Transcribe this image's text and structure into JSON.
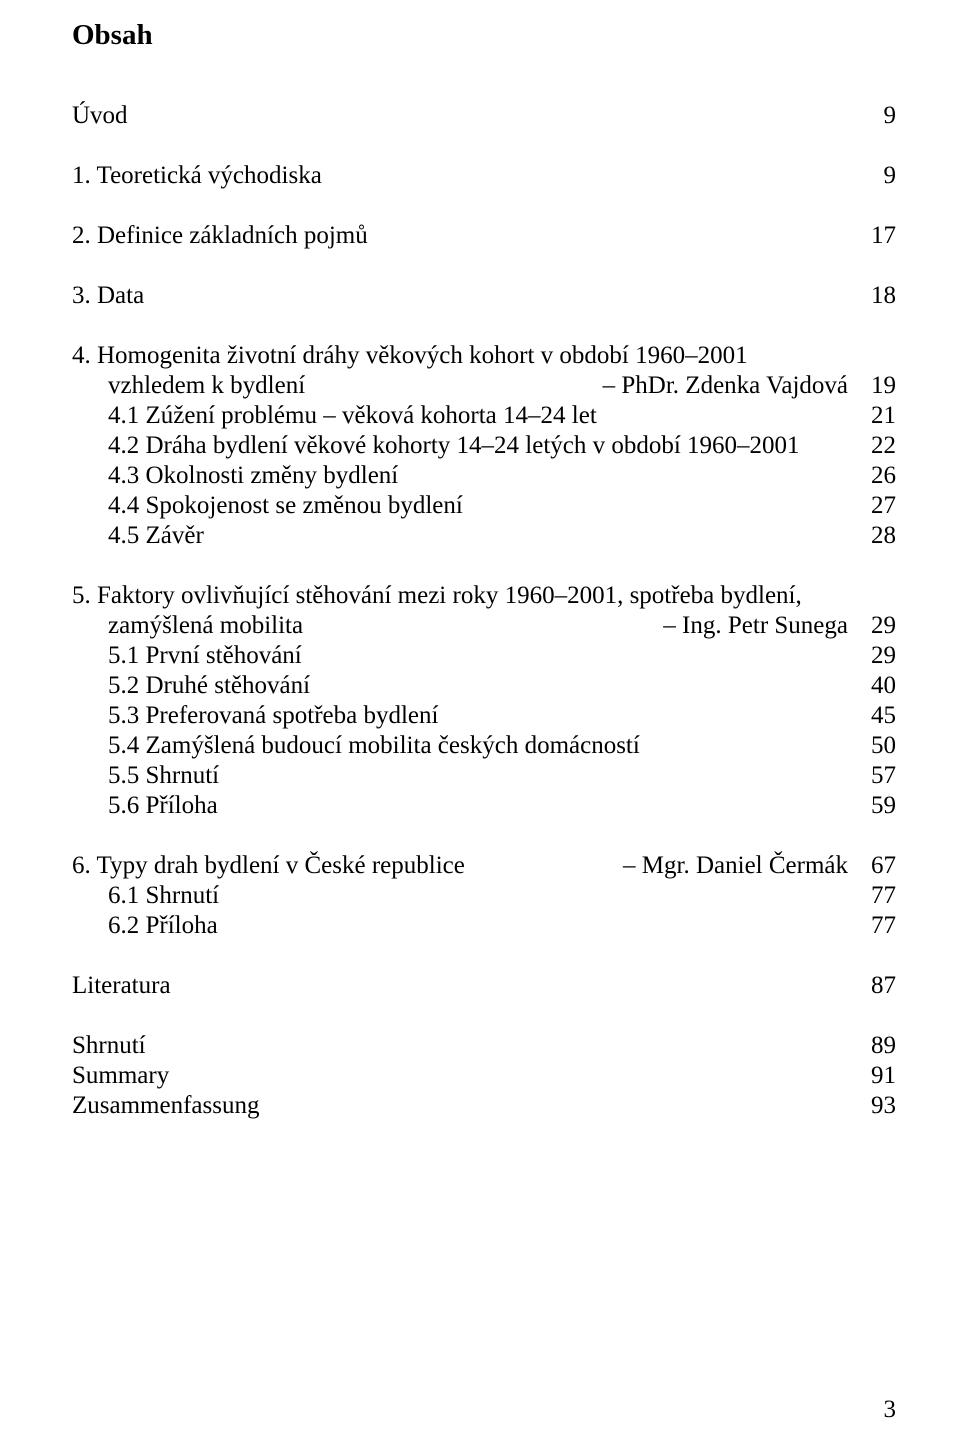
{
  "heading": "Obsah",
  "entries": [
    {
      "title": "Úvod",
      "page": "9",
      "indent": 0
    },
    {
      "spacer": true
    },
    {
      "title": "1. Teoretická východiska",
      "page": "9",
      "indent": 0
    },
    {
      "spacer": true
    },
    {
      "title": "2. Definice základních pojmů",
      "page": "17",
      "indent": 0
    },
    {
      "spacer": true
    },
    {
      "title": "3. Data",
      "page": "18",
      "indent": 0
    },
    {
      "spacer": true
    },
    {
      "title": "4. Homogenita životní dráhy věkových kohort v období 1960–2001",
      "indent": 0
    },
    {
      "title_cont": "vzhledem k bydlení",
      "author": "– PhDr. Zdenka Vajdová",
      "page": "19",
      "indent": 0
    },
    {
      "title": "4.1 Zúžení problému – věková kohorta 14–24 let",
      "page": "21",
      "indent": 1
    },
    {
      "title": "4.2 Dráha bydlení věkové kohorty 14–24 letých v období 1960–2001",
      "page": "22",
      "indent": 1
    },
    {
      "title": "4.3 Okolnosti změny bydlení",
      "page": "26",
      "indent": 1
    },
    {
      "title": "4.4 Spokojenost se změnou bydlení",
      "page": "27",
      "indent": 1
    },
    {
      "title": "4.5 Závěr",
      "page": "28",
      "indent": 1
    },
    {
      "spacer": true
    },
    {
      "title": "5. Faktory ovlivňující stěhování mezi roky 1960–2001, spotřeba bydlení,",
      "indent": 0
    },
    {
      "title_cont": "zamýšlená mobilita",
      "author": "– Ing. Petr Sunega",
      "page": "29",
      "indent": 0
    },
    {
      "title": "5.1 První stěhování",
      "page": "29",
      "indent": 1
    },
    {
      "title": "5.2 Druhé stěhování",
      "page": "40",
      "indent": 1
    },
    {
      "title": "5.3 Preferovaná spotřeba bydlení",
      "page": "45",
      "indent": 1
    },
    {
      "title": "5.4 Zamýšlená budoucí mobilita českých domácností",
      "page": "50",
      "indent": 1
    },
    {
      "title": "5.5 Shrnutí",
      "page": "57",
      "indent": 1
    },
    {
      "title": "5.6 Příloha",
      "page": "59",
      "indent": 1
    },
    {
      "spacer": true
    },
    {
      "title": "6. Typy drah bydlení v České republice",
      "author": "– Mgr. Daniel Čermák",
      "page": "67",
      "indent": 0
    },
    {
      "title": "6.1 Shrnutí",
      "page": "77",
      "indent": 1
    },
    {
      "title": "6.2 Příloha",
      "page": "77",
      "indent": 1
    },
    {
      "spacer": true
    },
    {
      "title": "Literatura",
      "page": "87",
      "indent": 0
    },
    {
      "spacer": true
    },
    {
      "title": "Shrnutí",
      "page": "89",
      "indent": 0
    },
    {
      "title": "Summary",
      "page": "91",
      "indent": 0
    },
    {
      "title": "Zusammenfassung",
      "page": "93",
      "indent": 0
    }
  ],
  "page_number": "3"
}
